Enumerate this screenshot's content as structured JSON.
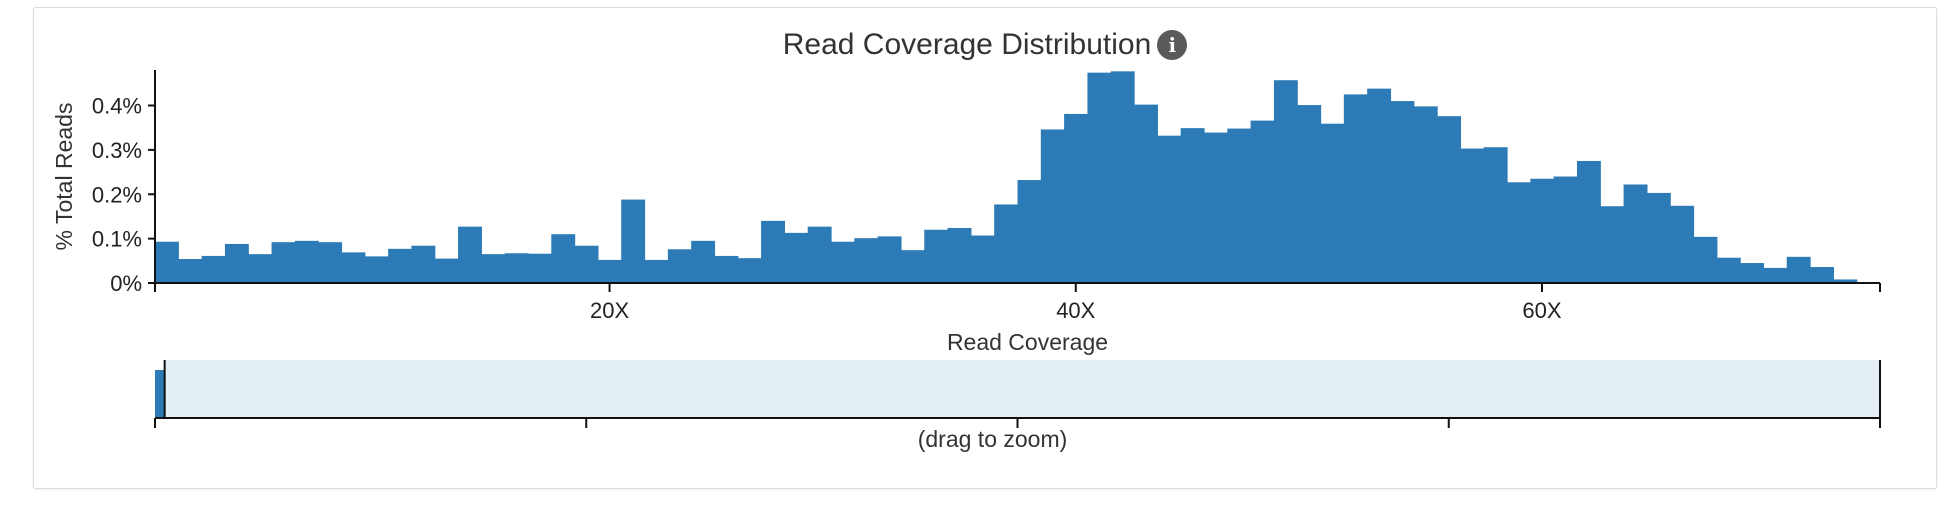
{
  "chart": {
    "title": "Read Coverage Distribution",
    "info_icon": "info-icon",
    "info_symbol": "i",
    "xlabel": "Read Coverage",
    "ylabel": "% Total Reads",
    "brush_hint": "(drag to zoom)"
  },
  "colors": {
    "bar": "#2c7bb6",
    "brush_bg": "#e4eff5",
    "axis": "#111111"
  },
  "chart_data": {
    "type": "bar",
    "title": "Read Coverage Distribution",
    "xlabel": "Read Coverage",
    "ylabel": "% Total Reads",
    "x_start": 1,
    "x_step": 1,
    "values": [
      0.093,
      0.054,
      0.061,
      0.088,
      0.065,
      0.092,
      0.095,
      0.092,
      0.069,
      0.06,
      0.077,
      0.084,
      0.055,
      0.127,
      0.065,
      0.067,
      0.066,
      0.11,
      0.084,
      0.052,
      0.188,
      0.052,
      0.076,
      0.095,
      0.061,
      0.056,
      0.14,
      0.113,
      0.127,
      0.093,
      0.101,
      0.105,
      0.074,
      0.12,
      0.124,
      0.107,
      0.177,
      0.232,
      0.346,
      0.381,
      0.474,
      0.477,
      0.402,
      0.332,
      0.349,
      0.339,
      0.348,
      0.366,
      0.457,
      0.401,
      0.359,
      0.425,
      0.438,
      0.41,
      0.398,
      0.376,
      0.303,
      0.306,
      0.227,
      0.235,
      0.24,
      0.275,
      0.173,
      0.222,
      0.203,
      0.174,
      0.104,
      0.057,
      0.045,
      0.034,
      0.059,
      0.036,
      0.008
    ],
    "xlim": [
      1,
      74
    ],
    "ylim": [
      0,
      0.48
    ],
    "x_ticks": [
      20,
      40,
      60
    ],
    "x_tick_labels": [
      "20X",
      "40X",
      "60X"
    ],
    "y_ticks": [
      0,
      0.1,
      0.2,
      0.3,
      0.4
    ],
    "y_tick_labels": [
      "0%",
      "0.1%",
      "0.2%",
      "0.3%",
      "0.4%"
    ],
    "grid": false,
    "legend": "none",
    "brush": {
      "label": "(drag to zoom)",
      "handle_value": 1
    }
  }
}
